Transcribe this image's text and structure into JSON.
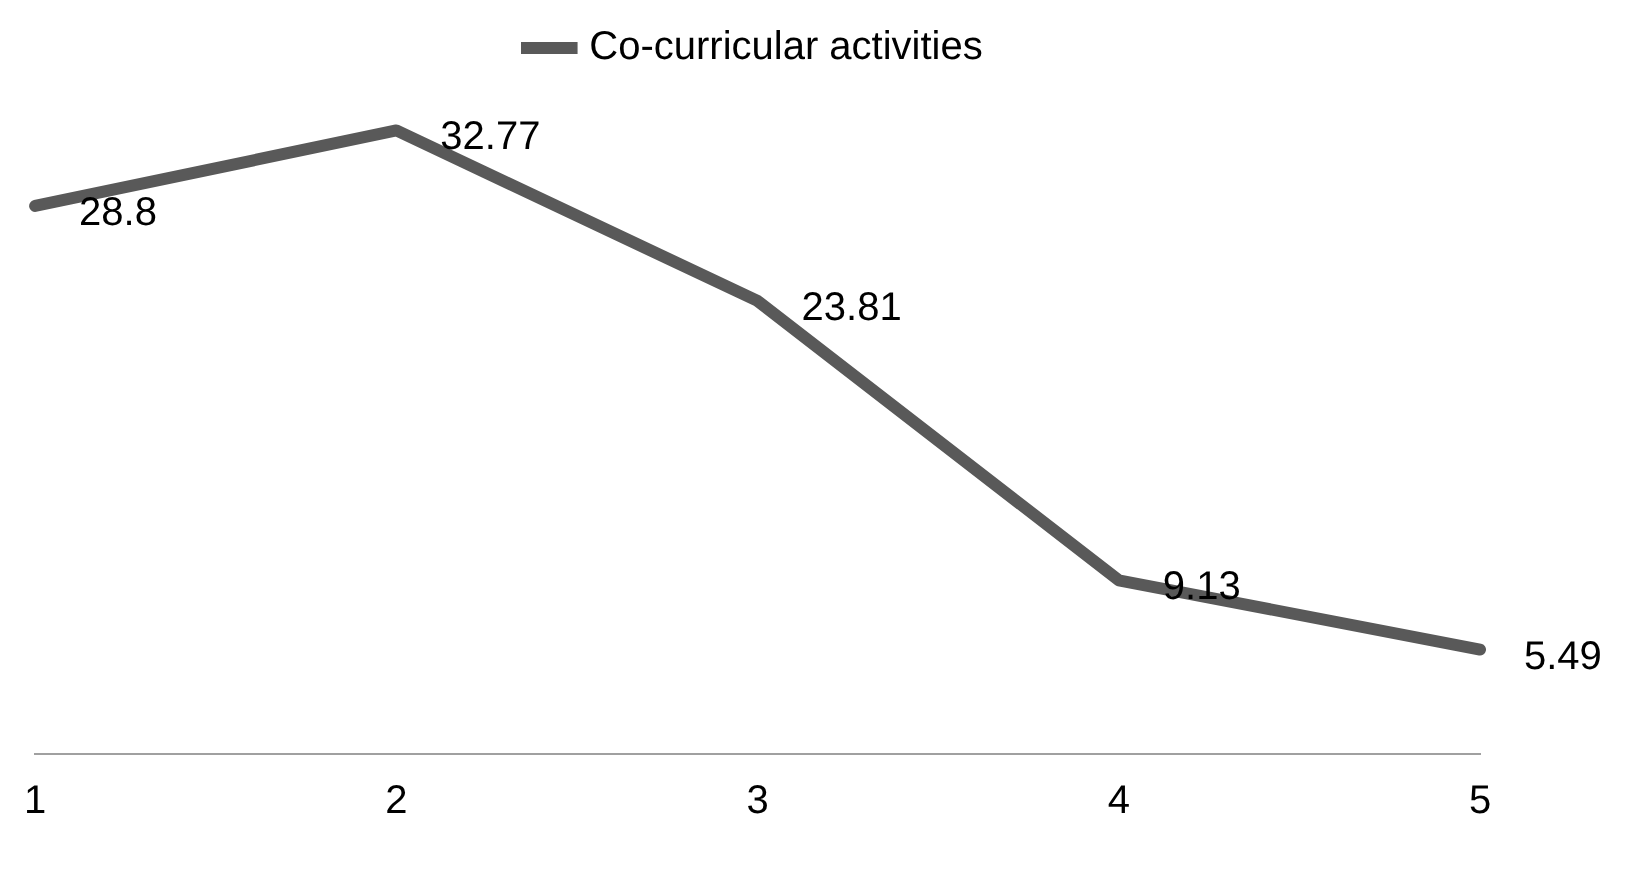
{
  "chart_data": {
    "type": "line",
    "categories": [
      "1",
      "2",
      "3",
      "4",
      "5"
    ],
    "series": [
      {
        "name": "Co-curricular activities",
        "color": "#595959",
        "values": [
          28.8,
          32.77,
          23.81,
          9.13,
          5.49
        ]
      }
    ],
    "data_labels": true,
    "legend": "top",
    "grid": false,
    "tick_labels": "x",
    "marker": "none"
  }
}
